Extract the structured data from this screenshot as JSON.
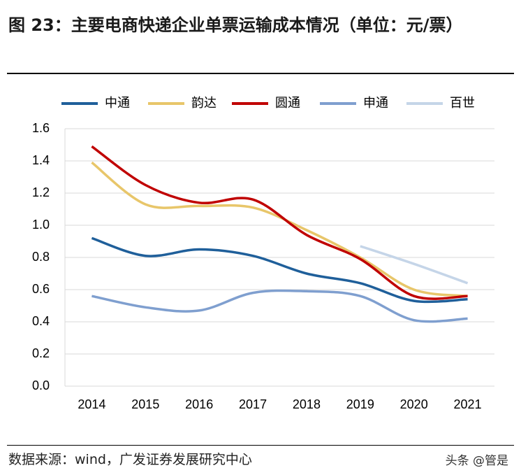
{
  "chart_data": {
    "type": "line",
    "title": "图 23：主要电商快递企业单票运输成本情况（单位：元/票）",
    "source": "数据来源：wind，广发证券发展研究中心",
    "watermark": "头条 @管是",
    "categories": [
      "2014",
      "2015",
      "2016",
      "2017",
      "2018",
      "2019",
      "2020",
      "2021"
    ],
    "series": [
      {
        "name": "中通",
        "color": "#1f5f9a",
        "values": [
          0.92,
          0.81,
          0.85,
          0.81,
          0.7,
          0.64,
          0.53,
          0.54
        ]
      },
      {
        "name": "韵达",
        "color": "#e8c66a",
        "values": [
          1.39,
          1.13,
          1.12,
          1.11,
          0.97,
          0.8,
          0.6,
          0.56
        ]
      },
      {
        "name": "圆通",
        "color": "#c00000",
        "values": [
          1.49,
          1.25,
          1.14,
          1.16,
          0.94,
          0.79,
          0.56,
          0.56
        ]
      },
      {
        "name": "申通",
        "color": "#7f9fcf",
        "values": [
          0.56,
          0.49,
          0.47,
          0.58,
          0.59,
          0.56,
          0.41,
          0.42
        ]
      },
      {
        "name": "百世",
        "color": "#c5d5e8",
        "values": [
          null,
          null,
          null,
          null,
          null,
          0.87,
          0.76,
          0.64
        ]
      }
    ],
    "ylim": [
      0,
      1.6
    ],
    "yticks": [
      {
        "value": 0,
        "label": "0.0"
      },
      0.2,
      0.4,
      0.6,
      0.8,
      {
        "value": 1,
        "label": "1.0"
      },
      1.2,
      1.4,
      1.6
    ],
    "grid": true
  }
}
